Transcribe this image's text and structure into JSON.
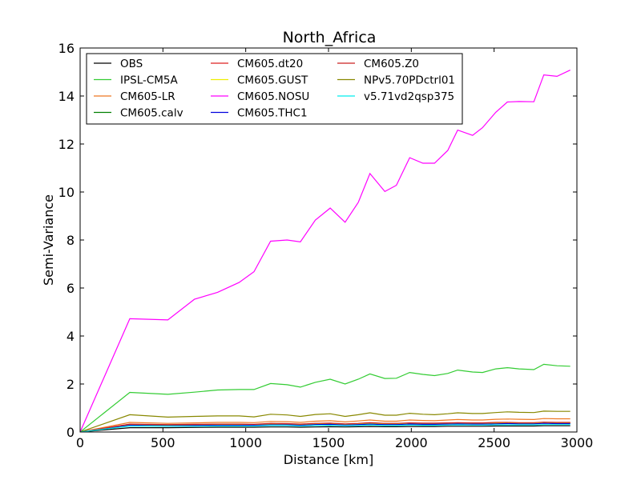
{
  "chart_data": {
    "type": "line",
    "title": "North_Africa",
    "xlabel": "Distance [km]",
    "ylabel": "Semi-Variance",
    "xlim": [
      0,
      3000
    ],
    "ylim": [
      0,
      16
    ],
    "xticks": [
      0,
      500,
      1000,
      1500,
      2000,
      2500,
      3000
    ],
    "yticks": [
      0,
      2,
      4,
      6,
      8,
      10,
      12,
      14,
      16
    ],
    "grid": false,
    "legend_position": "top-left",
    "legend_columns": 3,
    "x": [
      0,
      300,
      530,
      690,
      830,
      960,
      1050,
      1150,
      1250,
      1330,
      1420,
      1510,
      1600,
      1680,
      1750,
      1840,
      1910,
      1990,
      2070,
      2140,
      2220,
      2280,
      2370,
      2430,
      2510,
      2580,
      2650,
      2740,
      2800,
      2880,
      2960
    ],
    "series": [
      {
        "name": "OBS",
        "color": "#000000",
        "values": [
          0,
          0.18,
          0.18,
          0.19,
          0.2,
          0.2,
          0.2,
          0.21,
          0.21,
          0.2,
          0.21,
          0.22,
          0.21,
          0.22,
          0.23,
          0.22,
          0.22,
          0.23,
          0.23,
          0.23,
          0.24,
          0.24,
          0.24,
          0.24,
          0.25,
          0.25,
          0.25,
          0.25,
          0.26,
          0.26,
          0.26
        ]
      },
      {
        "name": "IPSL-CM5A",
        "color": "#33cc33",
        "values": [
          0,
          1.65,
          1.57,
          1.66,
          1.75,
          1.77,
          1.77,
          2.02,
          1.97,
          1.87,
          2.07,
          2.2,
          2.0,
          2.2,
          2.42,
          2.23,
          2.24,
          2.48,
          2.4,
          2.35,
          2.44,
          2.58,
          2.5,
          2.48,
          2.63,
          2.68,
          2.63,
          2.6,
          2.82,
          2.76,
          2.74
        ]
      },
      {
        "name": "CM605-LR",
        "color": "#ee7722",
        "values": [
          0,
          0.4,
          0.36,
          0.38,
          0.4,
          0.4,
          0.39,
          0.44,
          0.43,
          0.4,
          0.45,
          0.47,
          0.42,
          0.46,
          0.5,
          0.45,
          0.45,
          0.5,
          0.48,
          0.47,
          0.5,
          0.52,
          0.5,
          0.5,
          0.53,
          0.54,
          0.53,
          0.52,
          0.56,
          0.55,
          0.55
        ]
      },
      {
        "name": "CM605.calv",
        "color": "#008000",
        "values": [
          0,
          0.3,
          0.28,
          0.29,
          0.3,
          0.3,
          0.29,
          0.32,
          0.32,
          0.3,
          0.33,
          0.34,
          0.31,
          0.33,
          0.35,
          0.33,
          0.33,
          0.35,
          0.34,
          0.34,
          0.35,
          0.36,
          0.35,
          0.35,
          0.36,
          0.37,
          0.36,
          0.36,
          0.38,
          0.37,
          0.37
        ]
      },
      {
        "name": "CM605.dt20",
        "color": "#dd2222",
        "values": [
          0,
          0.32,
          0.3,
          0.31,
          0.32,
          0.32,
          0.31,
          0.35,
          0.34,
          0.32,
          0.35,
          0.36,
          0.33,
          0.35,
          0.38,
          0.35,
          0.35,
          0.37,
          0.36,
          0.36,
          0.37,
          0.38,
          0.37,
          0.37,
          0.39,
          0.39,
          0.38,
          0.38,
          0.4,
          0.39,
          0.39
        ]
      },
      {
        "name": "CM605.GUST",
        "color": "#eeee00",
        "values": [
          0,
          0.31,
          0.29,
          0.3,
          0.31,
          0.31,
          0.3,
          0.33,
          0.33,
          0.31,
          0.34,
          0.35,
          0.32,
          0.34,
          0.36,
          0.34,
          0.34,
          0.36,
          0.35,
          0.35,
          0.36,
          0.37,
          0.36,
          0.36,
          0.37,
          0.38,
          0.37,
          0.37,
          0.39,
          0.38,
          0.38
        ]
      },
      {
        "name": "CM605.NOSU",
        "color": "#ff00ff",
        "values": [
          0,
          4.72,
          4.67,
          5.53,
          5.82,
          6.23,
          6.68,
          7.95,
          8.0,
          7.92,
          8.83,
          9.33,
          8.74,
          9.57,
          10.77,
          10.02,
          10.28,
          11.43,
          11.2,
          11.2,
          11.73,
          12.58,
          12.36,
          12.68,
          13.32,
          13.75,
          13.77,
          13.76,
          14.88,
          14.82,
          15.08
        ]
      },
      {
        "name": "CM605.THC1",
        "color": "#0000dd",
        "values": [
          0,
          0.28,
          0.26,
          0.27,
          0.28,
          0.28,
          0.28,
          0.3,
          0.3,
          0.28,
          0.31,
          0.32,
          0.29,
          0.31,
          0.33,
          0.31,
          0.31,
          0.33,
          0.32,
          0.32,
          0.33,
          0.34,
          0.33,
          0.33,
          0.34,
          0.35,
          0.34,
          0.34,
          0.36,
          0.35,
          0.35
        ]
      },
      {
        "name": "CM605.Z0",
        "color": "#cc2222",
        "values": [
          0,
          0.33,
          0.31,
          0.32,
          0.33,
          0.33,
          0.32,
          0.36,
          0.35,
          0.33,
          0.36,
          0.37,
          0.34,
          0.36,
          0.39,
          0.36,
          0.36,
          0.38,
          0.37,
          0.37,
          0.38,
          0.39,
          0.38,
          0.38,
          0.4,
          0.4,
          0.39,
          0.39,
          0.41,
          0.4,
          0.4
        ]
      },
      {
        "name": "NPv5.70PDctrl01",
        "color": "#888800",
        "values": [
          0,
          0.72,
          0.62,
          0.65,
          0.67,
          0.67,
          0.63,
          0.74,
          0.71,
          0.65,
          0.73,
          0.76,
          0.65,
          0.72,
          0.8,
          0.7,
          0.7,
          0.78,
          0.74,
          0.72,
          0.76,
          0.8,
          0.77,
          0.77,
          0.81,
          0.84,
          0.82,
          0.81,
          0.87,
          0.86,
          0.86
        ]
      },
      {
        "name": "v5.71vd2qsp375",
        "color": "#00eeee",
        "values": [
          0,
          0.25,
          0.24,
          0.24,
          0.25,
          0.25,
          0.25,
          0.27,
          0.27,
          0.25,
          0.27,
          0.28,
          0.26,
          0.27,
          0.29,
          0.27,
          0.27,
          0.29,
          0.28,
          0.28,
          0.29,
          0.3,
          0.29,
          0.29,
          0.3,
          0.3,
          0.3,
          0.3,
          0.31,
          0.31,
          0.31
        ]
      }
    ]
  }
}
